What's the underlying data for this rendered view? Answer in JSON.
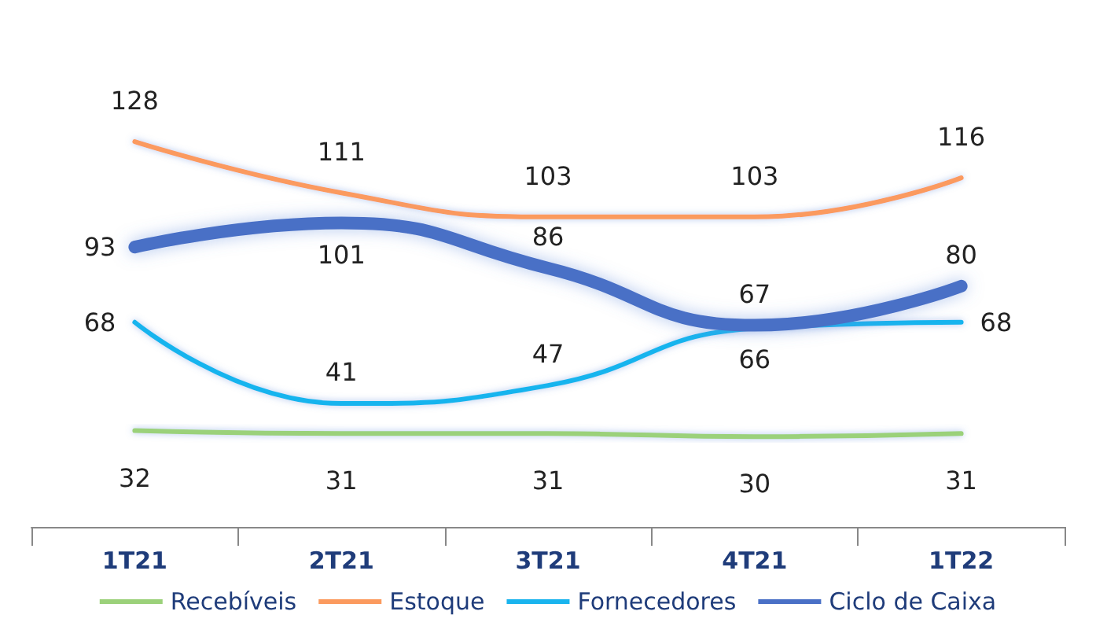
{
  "chart_data": {
    "type": "line",
    "categories": [
      "1T21",
      "2T21",
      "3T21",
      "4T21",
      "1T22"
    ],
    "series": [
      {
        "name": "Recebíveis",
        "color": "#9bd17a",
        "values": [
          32,
          31,
          31,
          30,
          31
        ]
      },
      {
        "name": "Estoque",
        "color": "#fb9a5e",
        "values": [
          128,
          111,
          103,
          103,
          116
        ]
      },
      {
        "name": "Fornecedores",
        "color": "#19b4ee",
        "values": [
          68,
          41,
          47,
          66,
          68
        ]
      },
      {
        "name": "Ciclo de Caixa",
        "color": "#4a70c6",
        "values": [
          93,
          101,
          86,
          67,
          80
        ]
      }
    ],
    "data_labels": true,
    "legend": "bottom",
    "marker": "none",
    "line_style": "solid",
    "grid": false
  }
}
